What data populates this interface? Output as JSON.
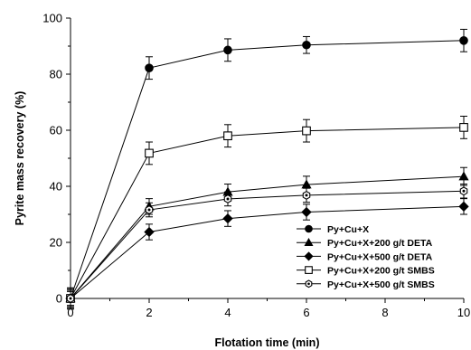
{
  "chart_data": {
    "type": "line",
    "xlabel": "Flotation time (min)",
    "ylabel": "Pyrite mass recovery (%)",
    "xlim": [
      0,
      10
    ],
    "ylim": [
      0,
      100
    ],
    "xticks": [
      "0",
      "2",
      "4",
      "6",
      "8",
      "10"
    ],
    "yticks": [
      "0",
      "20",
      "40",
      "60",
      "80",
      "100"
    ],
    "grid": false,
    "legend_position": "bottom-right",
    "x": [
      0,
      2,
      4,
      6,
      10
    ],
    "series": [
      {
        "name": "Py+Cu+X",
        "marker": "filled-circle",
        "values": [
          0,
          82.2,
          88.6,
          90.4,
          92.0
        ],
        "errors": [
          3.5,
          4.0,
          4.0,
          3.0,
          4.0
        ]
      },
      {
        "name": "Py+Cu+X+200 g/t DETA",
        "marker": "filled-triangle",
        "values": [
          0,
          32.8,
          38.0,
          40.6,
          43.5
        ],
        "errors": [
          3.0,
          2.8,
          2.8,
          3.0,
          3.2
        ]
      },
      {
        "name": "Py+Cu+X+500 g/t DETA",
        "marker": "filled-diamond",
        "values": [
          0,
          23.7,
          28.5,
          30.8,
          32.8
        ],
        "errors": [
          2.5,
          2.8,
          2.8,
          2.8,
          2.8
        ]
      },
      {
        "name": "Py+Cu+X+200 g/t SMBS",
        "marker": "open-square",
        "values": [
          0,
          51.8,
          58.0,
          59.8,
          61.0
        ],
        "errors": [
          3.8,
          4.0,
          4.0,
          4.0,
          4.0
        ]
      },
      {
        "name": "Py+Cu+X+500 g/t SMBS",
        "marker": "open-hexagon",
        "values": [
          0,
          31.6,
          35.5,
          36.8,
          38.3
        ],
        "errors": [
          2.5,
          2.5,
          2.5,
          2.5,
          2.5
        ]
      }
    ]
  }
}
